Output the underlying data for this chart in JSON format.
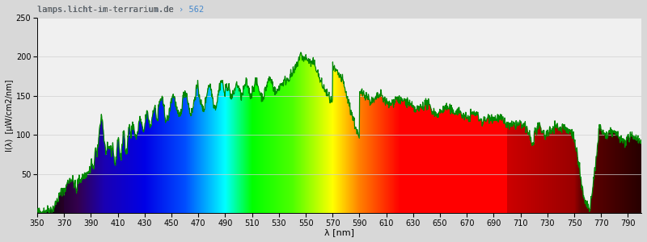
{
  "title_left": "lamps.licht-im-terrarium.de ",
  "title_right": "› 562",
  "xlabel": "λ [nm]",
  "ylabel": "I(λ)  [µW/cm2/nm]",
  "xlim": [
    350,
    800
  ],
  "ylim": [
    0,
    250
  ],
  "yticks": [
    50,
    100,
    150,
    200,
    250
  ],
  "xticks": [
    350,
    370,
    390,
    410,
    430,
    450,
    470,
    490,
    510,
    530,
    550,
    570,
    590,
    610,
    630,
    650,
    670,
    690,
    710,
    730,
    750,
    770,
    790
  ],
  "figsize": [
    8.0,
    3.0
  ],
  "dpi": 100,
  "line_color": "#008800",
  "line_width": 0.9,
  "title_color_left": "#666666",
  "title_color_right": "#4488cc",
  "bg_above_spectrum": "#e8e8e8",
  "grid_color": "#d0d0d0"
}
